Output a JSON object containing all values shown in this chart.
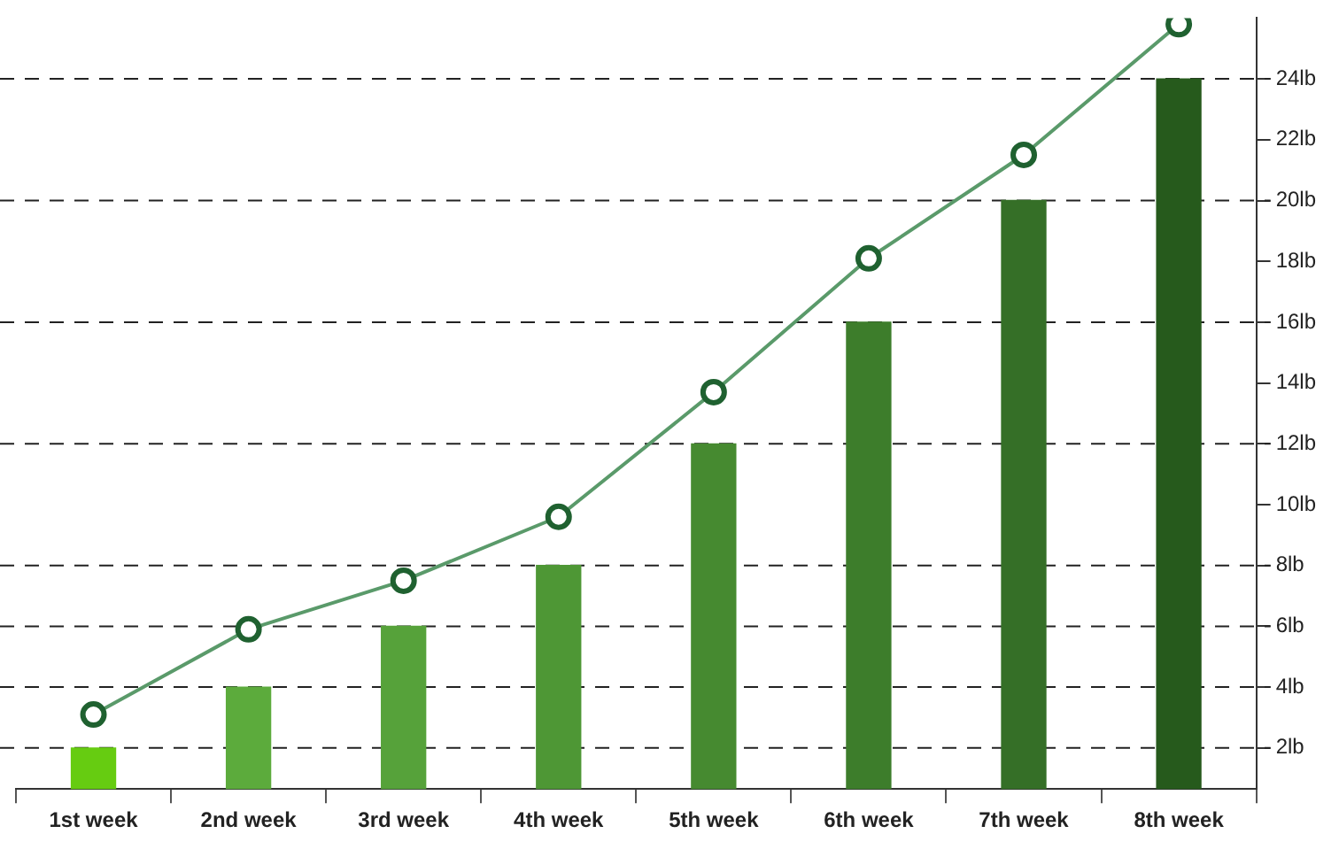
{
  "chart_data": {
    "type": "bar",
    "categories": [
      "1st week",
      "2nd week",
      "3rd week",
      "4th week",
      "5th week",
      "6th week",
      "7th week",
      "8th week"
    ],
    "series": [
      {
        "colors": [
          "#66cc11",
          "#5cab3c",
          "#56a23a",
          "#4e9735",
          "#468a30",
          "#3d7d2b",
          "#356f27",
          "#265a1c"
        ],
        "values": [
          2,
          4,
          6,
          8,
          12,
          16,
          20,
          24
        ]
      },
      {
        "type": "line",
        "color": "#5a9a6a",
        "values": [
          3.1,
          5.9,
          7.5,
          9.6,
          13.7,
          18.1,
          21.5,
          25.8
        ]
      }
    ],
    "ylim": [
      0.65,
      26
    ],
    "yticks": [
      {
        "value": 2,
        "label": "2lb"
      },
      {
        "value": 4,
        "label": "4lb"
      },
      {
        "value": 6,
        "label": "6lb"
      },
      {
        "value": 8,
        "label": "8lb"
      },
      {
        "value": 10,
        "label": "10lb"
      },
      {
        "value": 12,
        "label": "12lb"
      },
      {
        "value": 14,
        "label": "14lb"
      },
      {
        "value": 16,
        "label": "16lb"
      },
      {
        "value": 18,
        "label": "18lb"
      },
      {
        "value": 20,
        "label": "20lb"
      },
      {
        "value": 22,
        "label": "22lb"
      },
      {
        "value": 24,
        "label": "24lb"
      }
    ],
    "ref_lines": [
      {
        "axis": "y",
        "value": 2,
        "line_style": "dashed"
      },
      {
        "axis": "y",
        "value": 4,
        "line_style": "dashed"
      },
      {
        "axis": "y",
        "value": 6,
        "line_style": "dashed"
      },
      {
        "axis": "y",
        "value": 8,
        "line_style": "dashed"
      },
      {
        "axis": "y",
        "value": 12,
        "line_style": "dashed"
      },
      {
        "axis": "y",
        "value": 16,
        "line_style": "dashed"
      },
      {
        "axis": "y",
        "value": 20,
        "line_style": "dashed"
      },
      {
        "axis": "y",
        "value": 24,
        "line_style": "dashed"
      }
    ],
    "marker": "circle",
    "legend": false
  }
}
